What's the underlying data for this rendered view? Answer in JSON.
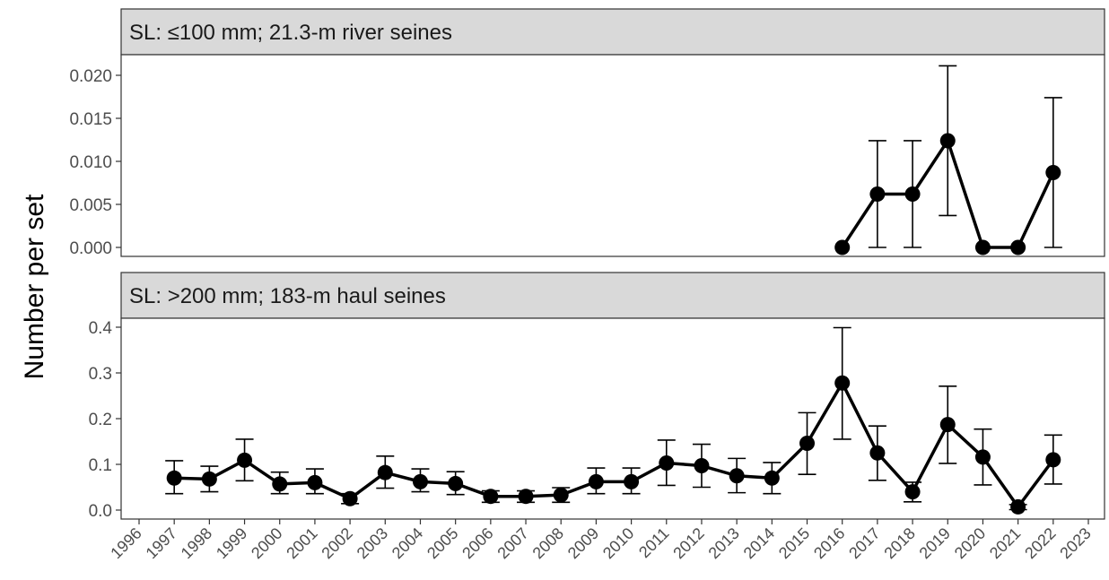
{
  "chart_data": {
    "type": "line",
    "ylabel": "Number per set",
    "x_ticks": [
      1996,
      1997,
      1998,
      1999,
      2000,
      2001,
      2002,
      2003,
      2004,
      2005,
      2006,
      2007,
      2008,
      2009,
      2010,
      2011,
      2012,
      2013,
      2014,
      2015,
      2016,
      2017,
      2018,
      2019,
      2020,
      2021,
      2022,
      2023
    ],
    "xlim": [
      1996,
      2023
    ],
    "grid": false,
    "error_bars": true,
    "panels": [
      {
        "strip": "SL: ≤100 mm; 21.3-m river seines",
        "ylim": [
          0,
          0.022
        ],
        "y_ticks": [
          "0.000",
          "0.005",
          "0.010",
          "0.015",
          "0.020"
        ],
        "x": [
          2016,
          2017,
          2018,
          2019,
          2020,
          2021,
          2022
        ],
        "y": [
          0.0,
          0.0062,
          0.0062,
          0.0124,
          0.0,
          0.0,
          0.0087
        ],
        "lower": [
          0.0,
          0.0,
          0.0,
          0.0037,
          0.0,
          0.0,
          0.0
        ],
        "upper": [
          0.0,
          0.0124,
          0.0124,
          0.0211,
          0.0,
          0.0,
          0.0174
        ]
      },
      {
        "strip": "SL: >200 mm; 183-m haul seines",
        "ylim": [
          0,
          0.4
        ],
        "y_ticks": [
          "0.0",
          "0.1",
          "0.2",
          "0.3",
          "0.4"
        ],
        "x": [
          1997,
          1998,
          1999,
          2000,
          2001,
          2002,
          2003,
          2004,
          2005,
          2006,
          2007,
          2008,
          2009,
          2010,
          2011,
          2012,
          2013,
          2014,
          2015,
          2016,
          2017,
          2018,
          2019,
          2020,
          2021,
          2022
        ],
        "y": [
          0.07,
          0.068,
          0.109,
          0.057,
          0.06,
          0.025,
          0.082,
          0.062,
          0.058,
          0.03,
          0.03,
          0.033,
          0.062,
          0.062,
          0.103,
          0.097,
          0.075,
          0.07,
          0.146,
          0.278,
          0.125,
          0.04,
          0.187,
          0.116,
          0.007,
          0.11
        ],
        "lower": [
          0.036,
          0.04,
          0.064,
          0.036,
          0.036,
          0.014,
          0.048,
          0.04,
          0.034,
          0.017,
          0.017,
          0.017,
          0.036,
          0.036,
          0.054,
          0.05,
          0.038,
          0.036,
          0.078,
          0.155,
          0.065,
          0.018,
          0.102,
          0.055,
          0.001,
          0.057
        ],
        "upper": [
          0.108,
          0.096,
          0.155,
          0.083,
          0.09,
          0.036,
          0.118,
          0.09,
          0.084,
          0.042,
          0.042,
          0.049,
          0.092,
          0.092,
          0.153,
          0.144,
          0.113,
          0.104,
          0.213,
          0.399,
          0.184,
          0.061,
          0.271,
          0.177,
          0.012,
          0.164
        ]
      }
    ]
  }
}
